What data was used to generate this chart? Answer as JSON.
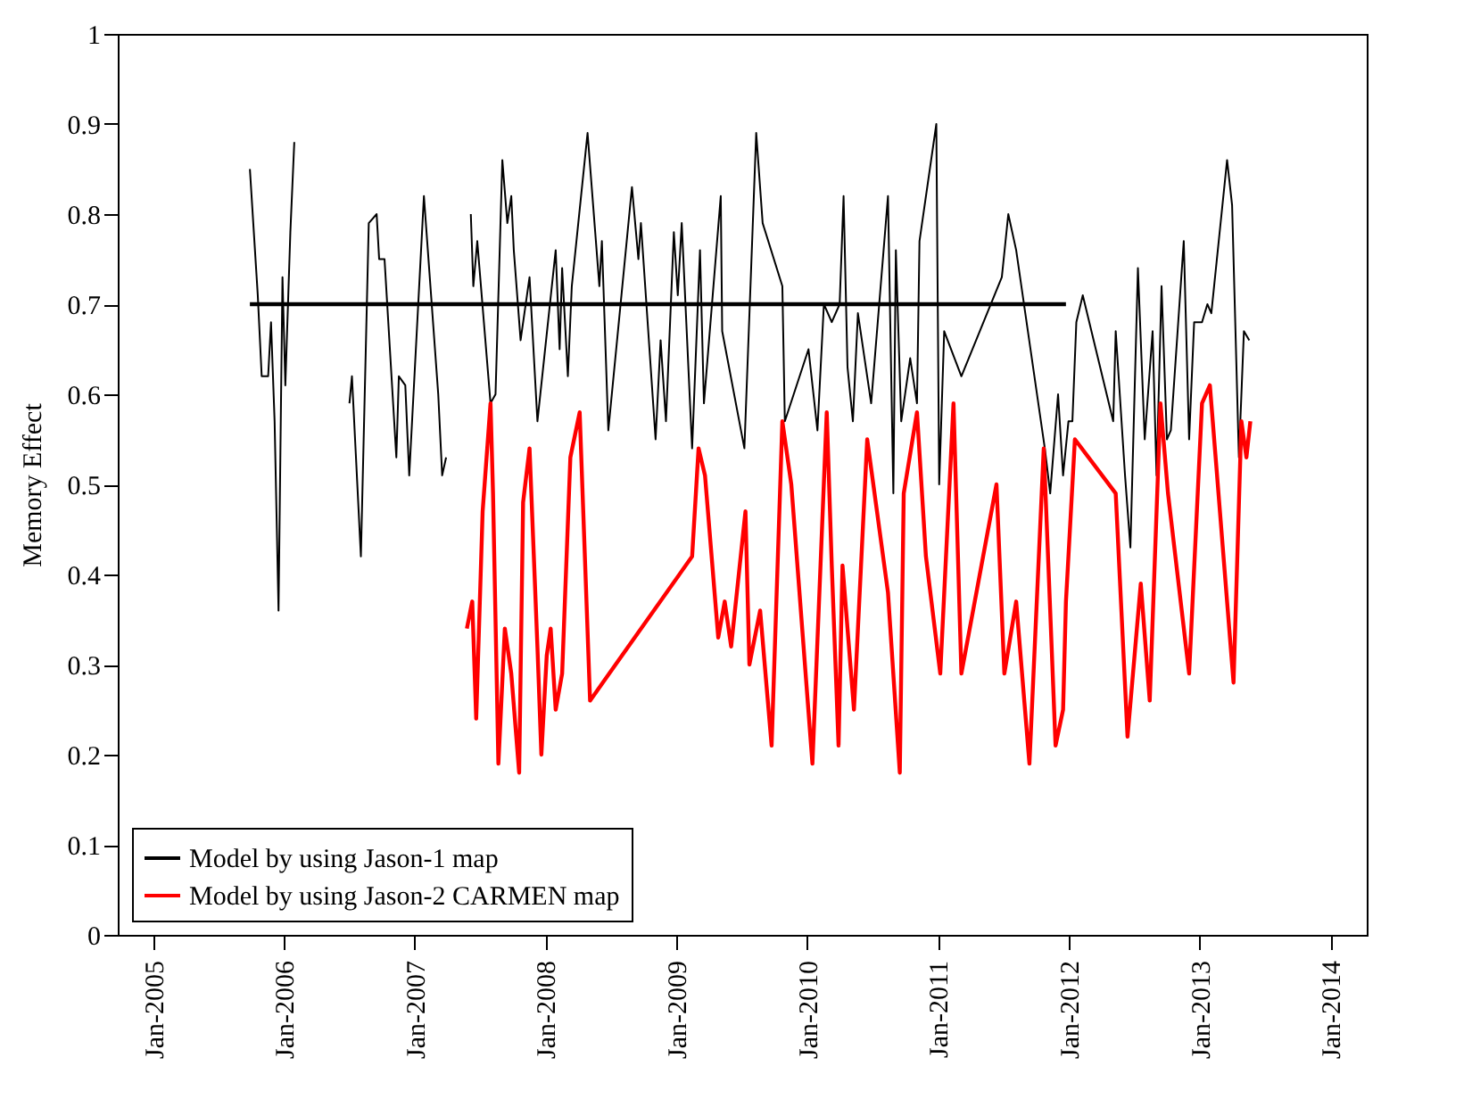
{
  "chart_data": {
    "type": "line",
    "ylabel": "Memory Effect",
    "xlim": [
      "2004-09-24",
      "2014-04-13"
    ],
    "xticks": [
      {
        "value": "2005-01-01",
        "label": "Jan-2005"
      },
      {
        "value": "2006-01-01",
        "label": "Jan-2006"
      },
      {
        "value": "2007-01-01",
        "label": "Jan-2007"
      },
      {
        "value": "2008-01-01",
        "label": "Jan-2008"
      },
      {
        "value": "2009-01-01",
        "label": "Jan-2009"
      },
      {
        "value": "2010-01-01",
        "label": "Jan-2010"
      },
      {
        "value": "2011-01-01",
        "label": "Jan-2011"
      },
      {
        "value": "2012-01-01",
        "label": "Jan-2012"
      },
      {
        "value": "2013-01-01",
        "label": "Jan-2013"
      },
      {
        "value": "2014-01-01",
        "label": "Jan-2014"
      }
    ],
    "ylim": [
      0,
      1
    ],
    "yticks": [
      0,
      0.1,
      0.2,
      0.3,
      0.4,
      0.5,
      0.6,
      0.7,
      0.8,
      0.9,
      1
    ],
    "grid": false,
    "legend": "bottom left",
    "marker": "none",
    "line_style": "solid",
    "series": [
      {
        "name": "Model by using Jason-1 map",
        "color": "#000000",
        "x": [
          "2005-09-28",
          "2005-10-20",
          "2005-10-31",
          "2005-11-18",
          "2005-11-26",
          "2005-12-06",
          "2005-12-17",
          "2005-12-28",
          "2006-01-05",
          "2006-01-19",
          "2006-01-30",
          "2006-04-21",
          "2006-07-03",
          "2006-07-10",
          "2006-08-04",
          "2006-08-26",
          "2006-09-17",
          "2006-09-24",
          "2006-10-09",
          "2006-11-11",
          "2006-11-18",
          "2006-12-06",
          "2006-12-17",
          "2007-01-27",
          "2007-03-08",
          "2007-03-19",
          "2007-03-30",
          "2007-05-09",
          "2007-06-07",
          "2007-06-14",
          "2007-06-25",
          "2007-08-01",
          "2007-08-15",
          "2007-09-03",
          "2007-09-17",
          "2007-09-28",
          "2007-10-05",
          "2007-10-24",
          "2007-11-18",
          "2007-12-10",
          "2008-01-30",
          "2008-02-10",
          "2008-02-17",
          "2008-03-04",
          "2008-03-15",
          "2008-04-28",
          "2008-05-31",
          "2008-06-07",
          "2008-06-25",
          "2008-08-30",
          "2008-09-17",
          "2008-09-24",
          "2008-11-04",
          "2008-11-18",
          "2008-12-03",
          "2008-12-25",
          "2009-01-05",
          "2009-01-16",
          "2009-02-14",
          "2009-03-08",
          "2009-03-19",
          "2009-05-05",
          "2009-05-09",
          "2009-07-10",
          "2009-08-12",
          "2009-08-30",
          "2009-10-24",
          "2009-10-31",
          "2010-01-05",
          "2010-01-30",
          "2010-02-17",
          "2010-03-11",
          "2010-04-02",
          "2010-04-13",
          "2010-04-24",
          "2010-05-09",
          "2010-05-23",
          "2010-06-29",
          "2010-08-15",
          "2010-08-30",
          "2010-09-06",
          "2010-09-21",
          "2010-10-16",
          "2010-11-04",
          "2010-11-11",
          "2010-12-28",
          "2011-01-05",
          "2011-01-19",
          "2011-03-08",
          "2011-06-29",
          "2011-07-17",
          "2011-08-08",
          "2011-10-27",
          "2011-11-11",
          "2011-12-03",
          "2011-12-17",
          "2012-01-01",
          "2012-01-12",
          "2012-01-23",
          "2012-02-10",
          "2012-05-05",
          "2012-05-12",
          "2012-06-07",
          "2012-06-22",
          "2012-07-13",
          "2012-08-01",
          "2012-08-23",
          "2012-09-03",
          "2012-09-17",
          "2012-10-02",
          "2012-10-13",
          "2012-11-18",
          "2012-12-03",
          "2012-12-17",
          "2013-01-08",
          "2013-01-23",
          "2013-02-03",
          "2013-03-19",
          "2013-04-02",
          "2013-04-21",
          "2013-05-05",
          "2013-05-20"
        ],
        "values": [
          0.85,
          0.71,
          0.62,
          0.62,
          0.68,
          0.57,
          0.36,
          0.73,
          0.61,
          0.78,
          0.88,
          null,
          0.59,
          0.62,
          0.42,
          0.79,
          0.8,
          0.75,
          0.75,
          0.53,
          0.62,
          0.61,
          0.51,
          0.82,
          0.6,
          0.51,
          0.53,
          null,
          0.8,
          0.72,
          0.77,
          0.59,
          0.6,
          0.86,
          0.79,
          0.82,
          0.76,
          0.66,
          0.73,
          0.57,
          0.76,
          0.65,
          0.74,
          0.62,
          0.72,
          0.89,
          0.72,
          0.77,
          0.56,
          0.83,
          0.75,
          0.79,
          0.55,
          0.66,
          0.57,
          0.78,
          0.71,
          0.79,
          0.54,
          0.76,
          0.59,
          0.82,
          0.67,
          0.54,
          0.89,
          0.79,
          0.72,
          0.57,
          0.65,
          0.56,
          0.7,
          0.68,
          0.7,
          0.82,
          0.63,
          0.57,
          0.69,
          0.59,
          0.82,
          0.49,
          0.76,
          0.57,
          0.64,
          0.59,
          0.77,
          0.9,
          0.5,
          0.67,
          0.62,
          0.73,
          0.8,
          0.76,
          0.54,
          0.49,
          0.6,
          0.51,
          0.57,
          0.57,
          0.68,
          0.71,
          0.57,
          0.67,
          0.51,
          0.43,
          0.74,
          0.55,
          0.67,
          0.51,
          0.72,
          0.55,
          0.56,
          0.77,
          0.55,
          0.68,
          0.68,
          0.7,
          0.69,
          0.86,
          0.81,
          0.53,
          0.67,
          0.66
        ]
      },
      {
        "name": "Model by using Jason-2 CARMEN map",
        "color": "#ff0000",
        "x": [
          "2007-05-27",
          "2007-06-11",
          "2007-06-22",
          "2007-07-10",
          "2007-08-01",
          "2007-08-08",
          "2007-08-23",
          "2007-09-10",
          "2007-09-28",
          "2007-10-20",
          "2007-10-31",
          "2007-11-18",
          "2007-12-10",
          "2007-12-21",
          "2008-01-05",
          "2008-01-16",
          "2008-01-30",
          "2008-02-17",
          "2008-03-11",
          "2008-04-06",
          "2008-05-05",
          "2009-02-14",
          "2009-03-04",
          "2009-03-22",
          "2009-04-28",
          "2009-05-16",
          "2009-06-03",
          "2009-07-13",
          "2009-07-24",
          "2009-08-23",
          "2009-09-24",
          "2009-10-24",
          "2009-11-18",
          "2010-01-16",
          "2010-02-25",
          "2010-03-11",
          "2010-03-30",
          "2010-04-10",
          "2010-05-12",
          "2010-06-18",
          "2010-08-15",
          "2010-09-17",
          "2010-09-28",
          "2010-11-04",
          "2010-11-29",
          "2011-01-08",
          "2011-02-14",
          "2011-03-08",
          "2011-06-14",
          "2011-07-06",
          "2011-08-08",
          "2011-09-14",
          "2011-10-24",
          "2011-11-26",
          "2011-12-17",
          "2011-12-25",
          "2012-01-19",
          "2012-05-12",
          "2012-06-14",
          "2012-07-21",
          "2012-08-15",
          "2012-09-14",
          "2012-10-05",
          "2012-12-03",
          "2013-01-08",
          "2013-01-30",
          "2013-04-06",
          "2013-04-28",
          "2013-05-12",
          "2013-05-23"
        ],
        "values": [
          0.34,
          0.37,
          0.24,
          0.47,
          0.59,
          0.49,
          0.19,
          0.34,
          0.29,
          0.18,
          0.48,
          0.54,
          0.32,
          0.2,
          0.31,
          0.34,
          0.25,
          0.29,
          0.53,
          0.58,
          0.26,
          0.42,
          0.54,
          0.51,
          0.33,
          0.37,
          0.32,
          0.47,
          0.3,
          0.36,
          0.21,
          0.57,
          0.5,
          0.19,
          0.58,
          0.41,
          0.21,
          0.41,
          0.25,
          0.55,
          0.38,
          0.18,
          0.49,
          0.58,
          0.42,
          0.29,
          0.59,
          0.29,
          0.5,
          0.29,
          0.37,
          0.19,
          0.54,
          0.21,
          0.25,
          0.37,
          0.55,
          0.49,
          0.22,
          0.39,
          0.26,
          0.59,
          0.49,
          0.29,
          0.59,
          0.61,
          0.28,
          0.57,
          0.53,
          0.57
        ]
      },
      {
        "color": "#000000",
        "x": [
          "2005-09-28",
          "2011-12-25"
        ],
        "values": [
          0.7,
          0.7
        ]
      }
    ]
  }
}
